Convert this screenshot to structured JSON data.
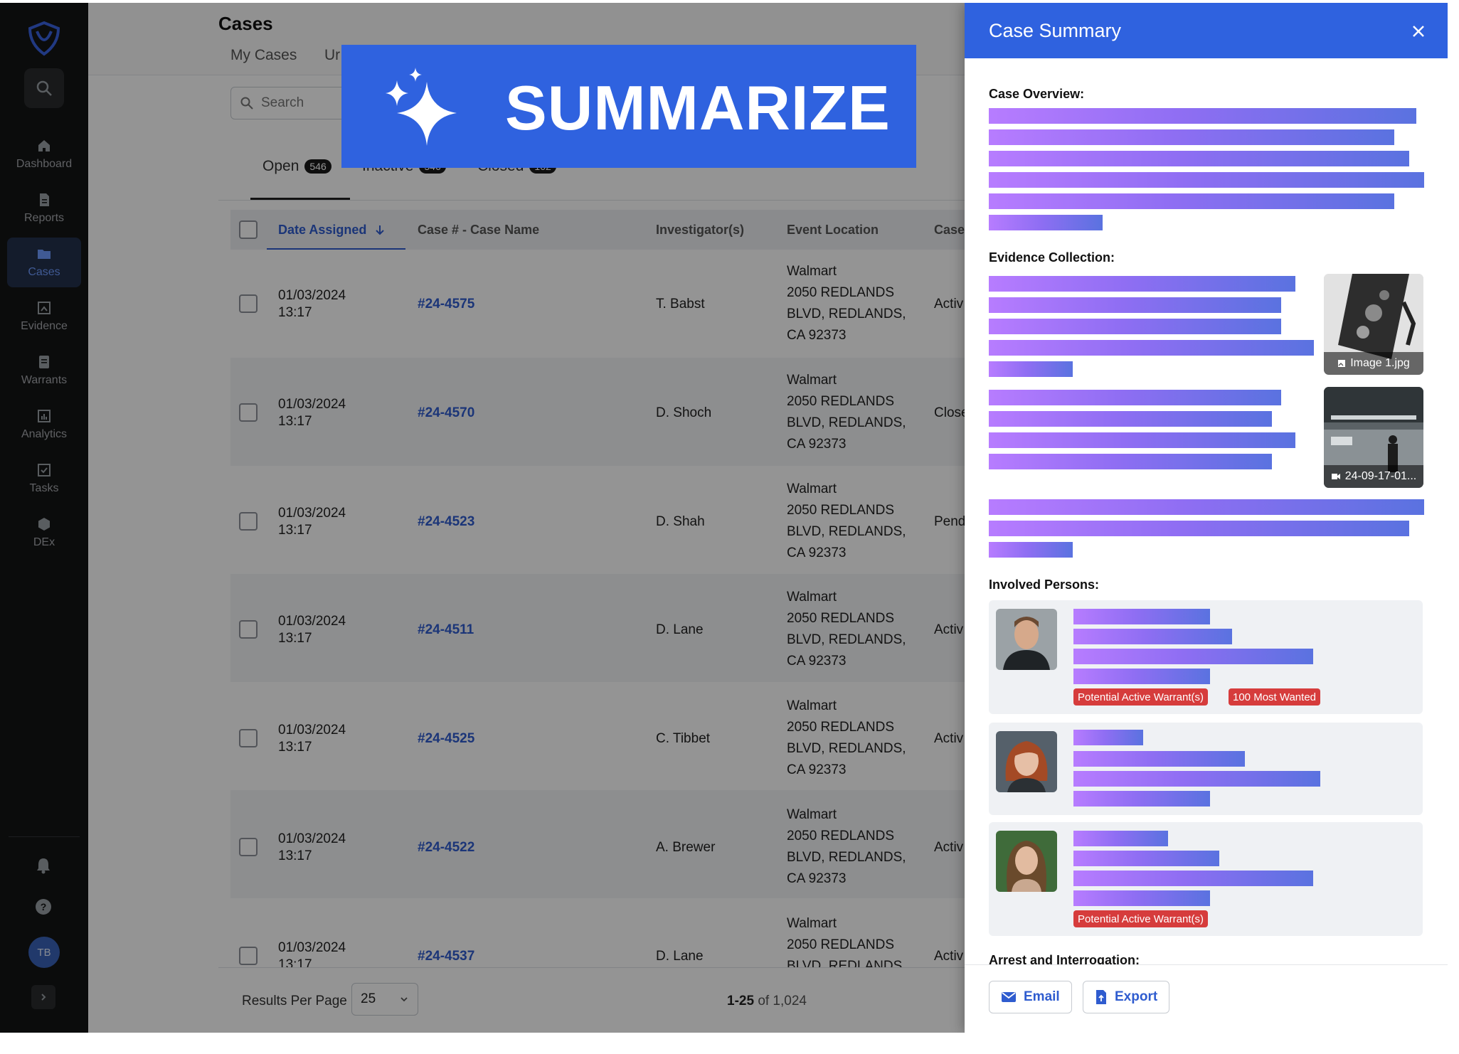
{
  "app": {
    "page_title": "Cases",
    "top_tabs": [
      "My Cases",
      "Ur"
    ]
  },
  "sidebar": {
    "items": [
      {
        "label": "Dashboard",
        "icon": "home-icon"
      },
      {
        "label": "Reports",
        "icon": "document-icon"
      },
      {
        "label": "Cases",
        "icon": "folder-icon",
        "active": true
      },
      {
        "label": "Evidence",
        "icon": "evidence-icon"
      },
      {
        "label": "Warrants",
        "icon": "warrant-icon"
      },
      {
        "label": "Analytics",
        "icon": "bar-chart-icon"
      },
      {
        "label": "Tasks",
        "icon": "checkbox-icon"
      },
      {
        "label": "DEx",
        "icon": "hexagon-icon"
      }
    ],
    "user_initials": "TB"
  },
  "search": {
    "placeholder": "Search"
  },
  "status_tabs": [
    {
      "label": "Open",
      "count": "546"
    },
    {
      "label": "Inactive",
      "count": "546"
    },
    {
      "label": "Closed",
      "count": "162"
    }
  ],
  "table": {
    "headers": {
      "date": "Date Assigned",
      "case": "Case # - Case Name",
      "investigator": "Investigator(s)",
      "location": "Event Location",
      "status": "Case"
    },
    "rows": [
      {
        "date": "01/03/2024",
        "time": "13:17",
        "case": "#24-4575",
        "investigator": "T. Babst",
        "loc1": "Walmart",
        "loc2": "2050 REDLANDS",
        "loc3": "BLVD, REDLANDS,",
        "loc4": "CA 92373",
        "status": "Activ"
      },
      {
        "date": "01/03/2024",
        "time": "13:17",
        "case": "#24-4570",
        "investigator": "D. Shoch",
        "loc1": "Walmart",
        "loc2": "2050 REDLANDS",
        "loc3": "BLVD, REDLANDS,",
        "loc4": "CA 92373",
        "status": "Close"
      },
      {
        "date": "01/03/2024",
        "time": "13:17",
        "case": "#24-4523",
        "investigator": "D. Shah",
        "loc1": "Walmart",
        "loc2": "2050 REDLANDS",
        "loc3": "BLVD, REDLANDS,",
        "loc4": "CA 92373",
        "status": "Pend"
      },
      {
        "date": "01/03/2024",
        "time": "13:17",
        "case": "#24-4511",
        "investigator": "D. Lane",
        "loc1": "Walmart",
        "loc2": "2050 REDLANDS",
        "loc3": "BLVD, REDLANDS,",
        "loc4": "CA 92373",
        "status": "Activ"
      },
      {
        "date": "01/03/2024",
        "time": "13:17",
        "case": "#24-4525",
        "investigator": "C. Tibbet",
        "loc1": "Walmart",
        "loc2": "2050 REDLANDS",
        "loc3": "BLVD, REDLANDS,",
        "loc4": "CA 92373",
        "status": "Activ"
      },
      {
        "date": "01/03/2024",
        "time": "13:17",
        "case": "#24-4522",
        "investigator": "A. Brewer",
        "loc1": "Walmart",
        "loc2": "2050 REDLANDS",
        "loc3": "BLVD, REDLANDS,",
        "loc4": "CA 92373",
        "status": "Activ"
      },
      {
        "date": "01/03/2024",
        "time": "13:17",
        "case": "#24-4537",
        "investigator": "D. Lane",
        "loc1": "Walmart",
        "loc2": "2050 REDLANDS",
        "loc3": "BLVD, REDLANDS,",
        "loc4": "CA 92373",
        "status": "Activ"
      }
    ]
  },
  "pagination": {
    "results_per_page_label": "Results Per Page",
    "results_per_page": "25",
    "range": "1-25",
    "of_label": "of 1,024"
  },
  "banner": {
    "text": "SUMMARIZE"
  },
  "summary": {
    "title": "Case Summary",
    "sections": {
      "overview": "Case Overview:",
      "evidence": "Evidence Collection:",
      "persons": "Involved Persons:",
      "arrest": "Arrest and Interrogation:"
    },
    "evidence_files": [
      "Image 1.jpg",
      "24-09-17-01..."
    ],
    "tags": {
      "warrant": "Potential Active Warrant(s)",
      "most_wanted": "100 Most Wanted"
    },
    "email_label": "Email",
    "export_label": "Export"
  },
  "colors": {
    "accent": "#2f62df",
    "sidebar_bg": "#141516",
    "warrant_tag": "#d63c3c"
  }
}
